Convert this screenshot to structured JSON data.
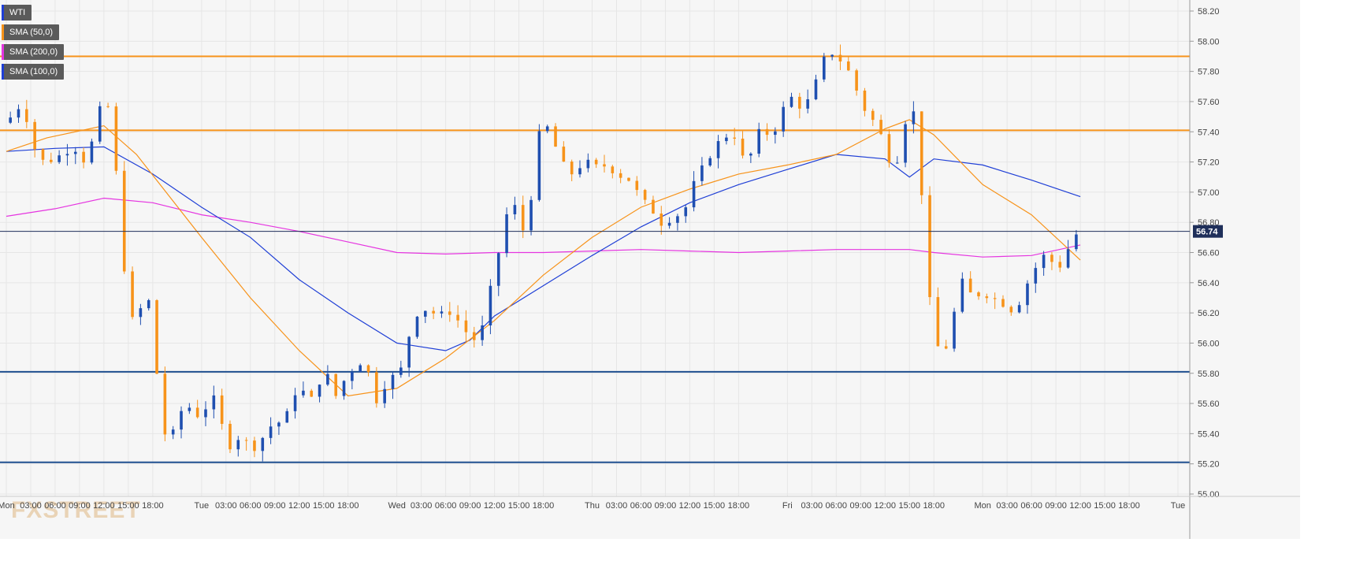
{
  "chart_data": {
    "type": "candlestick",
    "symbol": "WTI",
    "indicators": [
      {
        "name": "SMA (50,0)",
        "color": "#f7931a"
      },
      {
        "name": "SMA (200,0)",
        "color": "#e535e0"
      },
      {
        "name": "SMA (100,0)",
        "color": "#1f3fd6"
      }
    ],
    "y_ticks": [
      "58.20",
      "58.00",
      "57.80",
      "57.60",
      "57.40",
      "57.20",
      "57.00",
      "56.80",
      "56.60",
      "56.40",
      "56.20",
      "56.00",
      "55.80",
      "55.60",
      "55.40",
      "55.20",
      "55.00"
    ],
    "ylim": [
      55.0,
      58.2
    ],
    "x_ticks": [
      {
        "label": "Mon",
        "hour": 0
      },
      {
        "label": "03:00",
        "hour": 3
      },
      {
        "label": "06:00",
        "hour": 6
      },
      {
        "label": "09:00",
        "hour": 9
      },
      {
        "label": "12:00",
        "hour": 12
      },
      {
        "label": "15:00",
        "hour": 15
      },
      {
        "label": "18:00",
        "hour": 18
      },
      {
        "label": "Tue",
        "hour": 24
      },
      {
        "label": "03:00",
        "hour": 27
      },
      {
        "label": "06:00",
        "hour": 30
      },
      {
        "label": "09:00",
        "hour": 33
      },
      {
        "label": "12:00",
        "hour": 36
      },
      {
        "label": "15:00",
        "hour": 39
      },
      {
        "label": "18:00",
        "hour": 42
      },
      {
        "label": "Wed",
        "hour": 48
      },
      {
        "label": "03:00",
        "hour": 51
      },
      {
        "label": "06:00",
        "hour": 54
      },
      {
        "label": "09:00",
        "hour": 57
      },
      {
        "label": "12:00",
        "hour": 60
      },
      {
        "label": "15:00",
        "hour": 63
      },
      {
        "label": "18:00",
        "hour": 66
      },
      {
        "label": "Thu",
        "hour": 72
      },
      {
        "label": "03:00",
        "hour": 75
      },
      {
        "label": "06:00",
        "hour": 78
      },
      {
        "label": "09:00",
        "hour": 81
      },
      {
        "label": "12:00",
        "hour": 84
      },
      {
        "label": "15:00",
        "hour": 87
      },
      {
        "label": "18:00",
        "hour": 90
      },
      {
        "label": "Fri",
        "hour": 96
      },
      {
        "label": "03:00",
        "hour": 99
      },
      {
        "label": "06:00",
        "hour": 102
      },
      {
        "label": "09:00",
        "hour": 105
      },
      {
        "label": "12:00",
        "hour": 108
      },
      {
        "label": "15:00",
        "hour": 111
      },
      {
        "label": "18:00",
        "hour": 114
      },
      {
        "label": "Mon",
        "hour": 120
      },
      {
        "label": "03:00",
        "hour": 123
      },
      {
        "label": "06:00",
        "hour": 126
      },
      {
        "label": "09:00",
        "hour": 129
      },
      {
        "label": "12:00",
        "hour": 132
      },
      {
        "label": "15:00",
        "hour": 135
      },
      {
        "label": "18:00",
        "hour": 138
      },
      {
        "label": "Tue",
        "hour": 144
      }
    ],
    "last_price": "56.74",
    "last_price_value": 56.74,
    "horizontal_levels": [
      {
        "price": 57.9,
        "color": "#f7931a"
      },
      {
        "price": 57.41,
        "color": "#f7931a"
      },
      {
        "price": 55.81,
        "color": "#1f4f8f"
      },
      {
        "price": 55.21,
        "color": "#1f4f8f"
      }
    ],
    "close_path": [
      [
        0,
        57.46
      ],
      [
        2,
        57.6
      ],
      [
        3,
        57.38
      ],
      [
        4,
        57.2
      ],
      [
        6,
        57.22
      ],
      [
        8,
        57.3
      ],
      [
        9,
        57.28
      ],
      [
        10,
        57.15
      ],
      [
        11,
        57.5
      ],
      [
        12,
        57.58
      ],
      [
        13,
        57.55
      ],
      [
        14,
        56.7
      ],
      [
        15,
        56.3
      ],
      [
        16,
        56.0
      ],
      [
        17,
        56.45
      ],
      [
        18,
        56.1
      ],
      [
        19,
        55.5
      ],
      [
        20,
        55.3
      ],
      [
        21,
        55.5
      ],
      [
        22,
        55.6
      ],
      [
        23,
        55.55
      ],
      [
        24,
        55.5
      ],
      [
        25,
        55.65
      ],
      [
        26,
        55.6
      ],
      [
        27,
        55.3
      ],
      [
        28,
        55.35
      ],
      [
        29,
        55.4
      ],
      [
        30,
        55.28
      ],
      [
        31,
        55.35
      ],
      [
        32,
        55.4
      ],
      [
        33,
        55.5
      ],
      [
        34,
        55.45
      ],
      [
        35,
        55.6
      ],
      [
        36,
        55.75
      ],
      [
        37,
        55.6
      ],
      [
        38,
        55.65
      ],
      [
        39,
        55.85
      ],
      [
        40,
        55.7
      ],
      [
        41,
        55.6
      ],
      [
        42,
        55.9
      ],
      [
        43,
        55.75
      ],
      [
        44,
        56.0
      ],
      [
        45,
        55.6
      ],
      [
        46,
        55.65
      ],
      [
        47,
        55.8
      ],
      [
        48,
        55.75
      ],
      [
        49,
        55.9
      ],
      [
        50,
        56.2
      ],
      [
        51,
        56.2
      ],
      [
        52,
        56.25
      ],
      [
        53,
        56.15
      ],
      [
        54,
        56.22
      ],
      [
        55,
        56.2
      ],
      [
        56,
        56.1
      ],
      [
        57,
        56.05
      ],
      [
        58,
        56.0
      ],
      [
        59,
        56.2
      ],
      [
        60,
        56.5
      ],
      [
        61,
        56.7
      ],
      [
        62,
        57.0
      ],
      [
        63,
        56.8
      ],
      [
        64,
        56.7
      ],
      [
        65,
        57.25
      ],
      [
        66,
        57.5
      ],
      [
        67,
        57.35
      ],
      [
        68,
        57.25
      ],
      [
        69,
        57.1
      ],
      [
        70,
        57.15
      ],
      [
        71,
        57.2
      ],
      [
        72,
        57.18
      ],
      [
        73,
        57.15
      ],
      [
        74,
        57.2
      ],
      [
        75,
        57.1
      ],
      [
        76,
        57.12
      ],
      [
        77,
        57.05
      ],
      [
        78,
        56.95
      ],
      [
        79,
        56.9
      ],
      [
        80,
        56.85
      ],
      [
        81,
        56.75
      ],
      [
        82,
        56.9
      ],
      [
        83,
        56.8
      ],
      [
        84,
        57.0
      ],
      [
        85,
        57.1
      ],
      [
        86,
        57.2
      ],
      [
        87,
        57.3
      ],
      [
        88,
        57.35
      ],
      [
        89,
        57.4
      ],
      [
        90,
        57.35
      ],
      [
        91,
        57.1
      ],
      [
        92,
        57.4
      ],
      [
        93,
        57.38
      ],
      [
        94,
        57.4
      ],
      [
        95,
        57.45
      ],
      [
        96,
        57.65
      ],
      [
        97,
        57.6
      ],
      [
        98,
        57.55
      ],
      [
        99,
        57.65
      ],
      [
        100,
        57.8
      ],
      [
        101,
        57.95
      ],
      [
        102,
        57.9
      ],
      [
        103,
        57.85
      ],
      [
        104,
        57.75
      ],
      [
        105,
        57.6
      ],
      [
        106,
        57.5
      ],
      [
        107,
        57.45
      ],
      [
        108,
        57.3
      ],
      [
        109,
        57.15
      ],
      [
        110,
        57.3
      ],
      [
        111,
        57.65
      ],
      [
        112,
        57.4
      ],
      [
        113,
        56.6
      ],
      [
        114,
        55.95
      ],
      [
        115,
        56.0
      ],
      [
        116,
        55.95
      ],
      [
        117,
        56.45
      ],
      [
        118,
        56.35
      ],
      [
        119,
        56.3
      ],
      [
        120,
        56.35
      ],
      [
        121,
        56.3
      ],
      [
        122,
        56.28
      ],
      [
        123,
        56.25
      ],
      [
        124,
        56.2
      ],
      [
        125,
        56.35
      ],
      [
        126,
        56.45
      ],
      [
        127,
        56.55
      ],
      [
        128,
        56.6
      ],
      [
        129,
        56.48
      ],
      [
        130,
        56.55
      ],
      [
        131,
        56.7
      ],
      [
        132,
        56.74
      ]
    ],
    "sma50": [
      [
        0,
        57.27
      ],
      [
        5,
        57.36
      ],
      [
        12,
        57.44
      ],
      [
        16,
        57.25
      ],
      [
        24,
        56.7
      ],
      [
        30,
        56.3
      ],
      [
        36,
        55.95
      ],
      [
        42,
        55.65
      ],
      [
        48,
        55.7
      ],
      [
        54,
        55.9
      ],
      [
        60,
        56.15
      ],
      [
        66,
        56.45
      ],
      [
        72,
        56.7
      ],
      [
        78,
        56.9
      ],
      [
        84,
        57.02
      ],
      [
        90,
        57.12
      ],
      [
        96,
        57.18
      ],
      [
        102,
        57.25
      ],
      [
        108,
        57.42
      ],
      [
        111,
        57.48
      ],
      [
        114,
        57.38
      ],
      [
        120,
        57.05
      ],
      [
        126,
        56.85
      ],
      [
        132,
        56.55
      ]
    ],
    "sma100": [
      [
        0,
        57.27
      ],
      [
        6,
        57.29
      ],
      [
        12,
        57.3
      ],
      [
        18,
        57.12
      ],
      [
        24,
        56.9
      ],
      [
        30,
        56.7
      ],
      [
        36,
        56.42
      ],
      [
        42,
        56.2
      ],
      [
        48,
        56.0
      ],
      [
        54,
        55.95
      ],
      [
        57,
        56.02
      ],
      [
        60,
        56.18
      ],
      [
        66,
        56.38
      ],
      [
        72,
        56.58
      ],
      [
        78,
        56.77
      ],
      [
        84,
        56.93
      ],
      [
        90,
        57.05
      ],
      [
        96,
        57.15
      ],
      [
        102,
        57.25
      ],
      [
        108,
        57.22
      ],
      [
        111,
        57.1
      ],
      [
        114,
        57.22
      ],
      [
        120,
        57.18
      ],
      [
        126,
        57.08
      ],
      [
        132,
        56.97
      ]
    ],
    "sma200": [
      [
        0,
        56.84
      ],
      [
        6,
        56.89
      ],
      [
        12,
        56.96
      ],
      [
        18,
        56.93
      ],
      [
        24,
        56.85
      ],
      [
        30,
        56.8
      ],
      [
        36,
        56.74
      ],
      [
        42,
        56.67
      ],
      [
        48,
        56.6
      ],
      [
        54,
        56.59
      ],
      [
        60,
        56.6
      ],
      [
        66,
        56.6
      ],
      [
        72,
        56.61
      ],
      [
        78,
        56.62
      ],
      [
        84,
        56.61
      ],
      [
        90,
        56.6
      ],
      [
        96,
        56.61
      ],
      [
        102,
        56.62
      ],
      [
        108,
        56.62
      ],
      [
        111,
        56.62
      ],
      [
        114,
        56.6
      ],
      [
        120,
        56.57
      ],
      [
        126,
        56.58
      ],
      [
        132,
        56.65
      ]
    ]
  }
}
